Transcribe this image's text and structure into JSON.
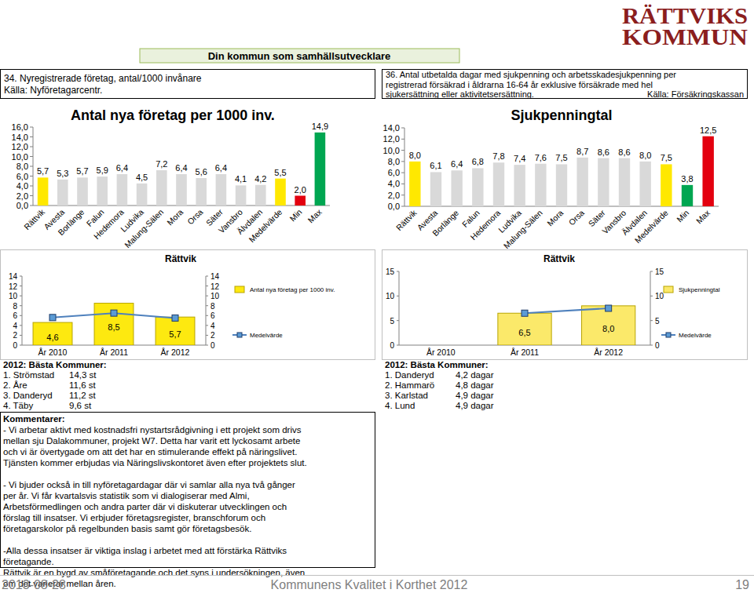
{
  "page": {
    "logo": [
      "RÄTTVIKS",
      "KOMMUN"
    ],
    "banner": "Din kommun som samhällsutvecklare",
    "left_header": [
      "34. Nyregistrerade företag, antal/1000 invånare",
      "Källa: Nyföretagarcentr."
    ],
    "right_header": {
      "lines": [
        "36. Antal utbetalda dagar med sjukpenning och arbetsskadesjukpenning per",
        "registrerad försäkrad i åldrarna 16-64 år exklusive försäkrade med hel",
        "sjukersättning eller aktivitetsersättning."
      ],
      "source": "Källa: Försäkringskassan"
    },
    "left_best": {
      "title": "2012: Bästa Kommuner:",
      "rows": [
        [
          "1. Strömstad",
          "14,3 st"
        ],
        [
          "2. Åre",
          "11,6 st"
        ],
        [
          "3. Danderyd",
          "11,2 st"
        ],
        [
          "4. Täby",
          "9,6 st"
        ]
      ]
    },
    "right_best": {
      "title": "2012: Bästa Kommuner:",
      "rows": [
        [
          "1. Danderyd",
          "4,2 dagar"
        ],
        [
          "2. Hammarö",
          "4,8 dagar"
        ],
        [
          "3. Karlstad",
          "4,9 dagar"
        ],
        [
          "4. Lund",
          "4,9 dagar"
        ]
      ]
    },
    "comments": {
      "title": "Kommentarer:",
      "paragraphs": [
        [
          "- Vi arbetar aktivt med kostnadsfri nystartsrådgivning i ett projekt som drivs",
          "mellan sju Dalakommuner, projekt W7. Detta har varit ett lyckosamt arbete",
          "och vi är övertygade om att det har en stimulerande effekt på näringslivet.",
          "Tjänsten kommer erbjudas via Näringslivskontoret även efter projektets slut."
        ],
        [
          "- Vi bjuder också in till nyföretagardagar där vi samlar alla nya två gånger",
          "per år. Vi får kvartalsvis statistik som vi dialogiserar med Almi,",
          "Arbetsförmedlingen och andra parter där vi diskuterar utvecklingen och",
          "förslag till insatser. Vi erbjuder företagsregister, branschforum och",
          "företagarskolor på regelbunden basis samt gör företagsbesök."
        ],
        [
          "-Alla dessa insatser är viktiga inslag i arbetet med att förstärka Rättviks",
          "företagande.",
          " Rättvik är en bygd av småföretagande och det syns i undersökningen, även",
          "om det varierar mellan åren."
        ]
      ]
    },
    "footer": {
      "date": "2013-08-28",
      "title": "Kommunens Kvalitet i Korthet 2012",
      "page": "19"
    }
  },
  "chart_data": [
    {
      "type": "bar",
      "title": "Antal nya företag per 1000 inv.",
      "categories": [
        "Rättvik",
        "Avesta",
        "Borlänge",
        "Falun",
        "Hedemora",
        "Ludvika",
        "Malung-Sälen",
        "Mora",
        "Orsa",
        "Säter",
        "Vansbro",
        "Älvdalen",
        "Medelvärde",
        "Min",
        "Max"
      ],
      "values": [
        5.7,
        5.3,
        5.7,
        5.9,
        6.4,
        4.5,
        7.2,
        6.4,
        5.6,
        6.4,
        4.1,
        4.2,
        5.5,
        2.0,
        14.9
      ],
      "value_labels": [
        "5,7",
        "5,3",
        "5,7",
        "5,9",
        "6,4",
        "4,5",
        "7,2",
        "6,4",
        "5,6",
        "6,4",
        "4,1",
        "4,2",
        "5,5",
        "2,0",
        "14,9"
      ],
      "colors": [
        "#ffe800",
        "#d9d9d9",
        "#d9d9d9",
        "#d9d9d9",
        "#d9d9d9",
        "#d9d9d9",
        "#d9d9d9",
        "#d9d9d9",
        "#d9d9d9",
        "#d9d9d9",
        "#d9d9d9",
        "#d9d9d9",
        "#ffe800",
        "#e3000f",
        "#00a651"
      ],
      "ylim": [
        0,
        16
      ],
      "yticks": [
        {
          "value": 0,
          "label": "0,0"
        },
        {
          "value": 2,
          "label": "2,0"
        },
        {
          "value": 4,
          "label": "4,0"
        },
        {
          "value": 6,
          "label": "6,0"
        },
        {
          "value": 8,
          "label": "8,0"
        },
        {
          "value": 10,
          "label": "10,0"
        },
        {
          "value": 12,
          "label": "12,0"
        },
        {
          "value": 14,
          "label": "14,0"
        },
        {
          "value": 16,
          "label": "16,0"
        }
      ],
      "grid": false,
      "data_labels": true
    },
    {
      "type": "bar",
      "title": "Sjukpenningtal",
      "categories": [
        "Rättvik",
        "Avesta",
        "Borlänge",
        "Falun",
        "Hedemora",
        "Ludvika",
        "Malung-Sälen",
        "Mora",
        "Orsa",
        "Säter",
        "Vansbro",
        "Älvdalen",
        "Medelvärde",
        "Min",
        "Max"
      ],
      "values": [
        8.0,
        6.1,
        6.4,
        6.8,
        7.8,
        7.4,
        7.6,
        7.5,
        8.7,
        8.6,
        8.6,
        8.0,
        7.5,
        3.8,
        12.5
      ],
      "value_labels": [
        "8,0",
        "6,1",
        "6,4",
        "6,8",
        "7,8",
        "7,4",
        "7,6",
        "7,5",
        "8,7",
        "8,6",
        "8,6",
        "8,0",
        "7,5",
        "3,8",
        "12,5"
      ],
      "colors": [
        "#ffe800",
        "#d9d9d9",
        "#d9d9d9",
        "#d9d9d9",
        "#d9d9d9",
        "#d9d9d9",
        "#d9d9d9",
        "#d9d9d9",
        "#d9d9d9",
        "#d9d9d9",
        "#d9d9d9",
        "#d9d9d9",
        "#ffe800",
        "#00a651",
        "#e3000f"
      ],
      "ylim": [
        0,
        14
      ],
      "yticks": [
        {
          "value": 0,
          "label": "0,0"
        },
        {
          "value": 2,
          "label": "2,0"
        },
        {
          "value": 4,
          "label": "4,0"
        },
        {
          "value": 6,
          "label": "6,0"
        },
        {
          "value": 8,
          "label": "8,0"
        },
        {
          "value": 10,
          "label": "10,0"
        },
        {
          "value": 12,
          "label": "12,0"
        },
        {
          "value": 14,
          "label": "14,0"
        }
      ],
      "grid": false,
      "data_labels": true
    },
    {
      "type": "bar",
      "title": "Rättvik",
      "categories": [
        "År 2010",
        "År 2011",
        "År 2012"
      ],
      "series": [
        {
          "name": "Antal nya företag per 1000 inv.",
          "type": "bar",
          "color": "#fde910",
          "values": [
            4.6,
            8.5,
            5.7
          ],
          "value_labels": [
            "4,6",
            "8,5",
            "5,7"
          ]
        },
        {
          "name": "Medelvärde",
          "type": "line",
          "color": "#4f81bd",
          "marker": "square",
          "values": [
            5.6,
            6.5,
            5.5
          ]
        }
      ],
      "ylim": [
        0,
        14
      ],
      "yticks": [
        0,
        2,
        4,
        6,
        8,
        10,
        12,
        14
      ],
      "y2lim": [
        0,
        14
      ],
      "y2ticks": [
        0,
        2,
        4,
        6,
        8,
        10,
        12,
        14
      ],
      "legend": "right",
      "grid": false,
      "data_labels": true
    },
    {
      "type": "bar",
      "title": "Rättvik",
      "categories": [
        "År 2010",
        "År 2011",
        "År 2012"
      ],
      "series": [
        {
          "name": "Sjukpenningtal",
          "type": "bar",
          "color": "#fbe96a",
          "values": [
            null,
            6.5,
            8.0
          ],
          "value_labels": [
            null,
            "6,5",
            "8,0"
          ]
        },
        {
          "name": "Medelvärde",
          "type": "line",
          "color": "#4f81bd",
          "marker": "square",
          "values": [
            null,
            6.5,
            7.5
          ]
        }
      ],
      "ylim": [
        0,
        15
      ],
      "yticks": [
        0,
        5,
        10,
        15
      ],
      "y2lim": [
        0,
        15
      ],
      "y2ticks": [
        0,
        5,
        10,
        15
      ],
      "legend": "right",
      "grid": false,
      "data_labels": true
    }
  ]
}
